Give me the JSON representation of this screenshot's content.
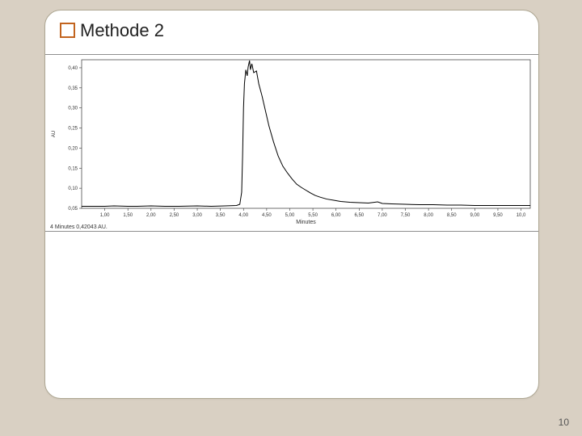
{
  "page": {
    "background_color": "#d9d0c3",
    "card_background": "#ffffff",
    "card_border": "#aea793",
    "card_radius": 20,
    "page_number": "10"
  },
  "title": {
    "bullet_border_color": "#c2641f",
    "text": "Methode 2",
    "font_size": 22,
    "text_color": "#222222"
  },
  "chromatogram": {
    "type": "line",
    "xlim": [
      0.5,
      10.2
    ],
    "ylim": [
      0.05,
      0.42
    ],
    "x_axis_label": "Minutes",
    "x_axis_label_fontsize": 7,
    "caption": "4 Minutes  0,42043 AU.",
    "caption_fontsize": 7,
    "x_tick_step": 0.5,
    "x_tick_labels": [
      "1,00",
      "1,50",
      "2,00",
      "2,50",
      "3,00",
      "3,50",
      "4,00",
      "4,50",
      "5,00",
      "5,50",
      "6,00",
      "6,50",
      "7,00",
      "7,50",
      "8,00",
      "8,50",
      "9,00",
      "9,50",
      "10,0"
    ],
    "y_ticks": [
      0.05,
      0.1,
      0.15,
      0.2,
      0.25,
      0.3,
      0.35,
      0.4
    ],
    "y_tick_labels": [
      "0,05",
      "0,10",
      "0,15",
      "0,20",
      "0,25",
      "0,30",
      "0,35",
      "0,40"
    ],
    "tick_fontsize": 6,
    "line_color": "#000000",
    "line_width": 1.0,
    "background_color": "#ffffff",
    "axis_color": "#333333",
    "frame_border_color": "#8f8f8f",
    "ylabel_side_unit": "AU",
    "series": [
      {
        "x": 0.5,
        "y": 0.055
      },
      {
        "x": 0.8,
        "y": 0.055
      },
      {
        "x": 1.0,
        "y": 0.055
      },
      {
        "x": 1.2,
        "y": 0.056
      },
      {
        "x": 1.5,
        "y": 0.055
      },
      {
        "x": 1.7,
        "y": 0.055
      },
      {
        "x": 2.0,
        "y": 0.056
      },
      {
        "x": 2.3,
        "y": 0.055
      },
      {
        "x": 2.6,
        "y": 0.055
      },
      {
        "x": 3.0,
        "y": 0.056
      },
      {
        "x": 3.3,
        "y": 0.055
      },
      {
        "x": 3.6,
        "y": 0.056
      },
      {
        "x": 3.85,
        "y": 0.057
      },
      {
        "x": 3.92,
        "y": 0.06
      },
      {
        "x": 3.96,
        "y": 0.09
      },
      {
        "x": 3.98,
        "y": 0.18
      },
      {
        "x": 4.0,
        "y": 0.3
      },
      {
        "x": 4.02,
        "y": 0.36
      },
      {
        "x": 4.05,
        "y": 0.395
      },
      {
        "x": 4.08,
        "y": 0.38
      },
      {
        "x": 4.1,
        "y": 0.402
      },
      {
        "x": 4.13,
        "y": 0.418
      },
      {
        "x": 4.15,
        "y": 0.395
      },
      {
        "x": 4.18,
        "y": 0.41
      },
      {
        "x": 4.22,
        "y": 0.388
      },
      {
        "x": 4.28,
        "y": 0.392
      },
      {
        "x": 4.33,
        "y": 0.36
      },
      {
        "x": 4.4,
        "y": 0.33
      },
      {
        "x": 4.48,
        "y": 0.29
      },
      {
        "x": 4.55,
        "y": 0.255
      },
      {
        "x": 4.65,
        "y": 0.215
      },
      {
        "x": 4.75,
        "y": 0.18
      },
      {
        "x": 4.85,
        "y": 0.155
      },
      {
        "x": 4.95,
        "y": 0.138
      },
      {
        "x": 5.05,
        "y": 0.123
      },
      {
        "x": 5.15,
        "y": 0.11
      },
      {
        "x": 5.25,
        "y": 0.102
      },
      {
        "x": 5.35,
        "y": 0.095
      },
      {
        "x": 5.45,
        "y": 0.088
      },
      {
        "x": 5.55,
        "y": 0.082
      },
      {
        "x": 5.65,
        "y": 0.078
      },
      {
        "x": 5.8,
        "y": 0.073
      },
      {
        "x": 5.95,
        "y": 0.07
      },
      {
        "x": 6.1,
        "y": 0.067
      },
      {
        "x": 6.3,
        "y": 0.065
      },
      {
        "x": 6.5,
        "y": 0.064
      },
      {
        "x": 6.7,
        "y": 0.063
      },
      {
        "x": 6.9,
        "y": 0.066
      },
      {
        "x": 7.0,
        "y": 0.062
      },
      {
        "x": 7.2,
        "y": 0.061
      },
      {
        "x": 7.5,
        "y": 0.06
      },
      {
        "x": 7.8,
        "y": 0.059
      },
      {
        "x": 8.1,
        "y": 0.059
      },
      {
        "x": 8.4,
        "y": 0.058
      },
      {
        "x": 8.7,
        "y": 0.058
      },
      {
        "x": 9.0,
        "y": 0.057
      },
      {
        "x": 9.3,
        "y": 0.057
      },
      {
        "x": 9.6,
        "y": 0.057
      },
      {
        "x": 9.9,
        "y": 0.057
      },
      {
        "x": 10.2,
        "y": 0.057
      }
    ]
  }
}
